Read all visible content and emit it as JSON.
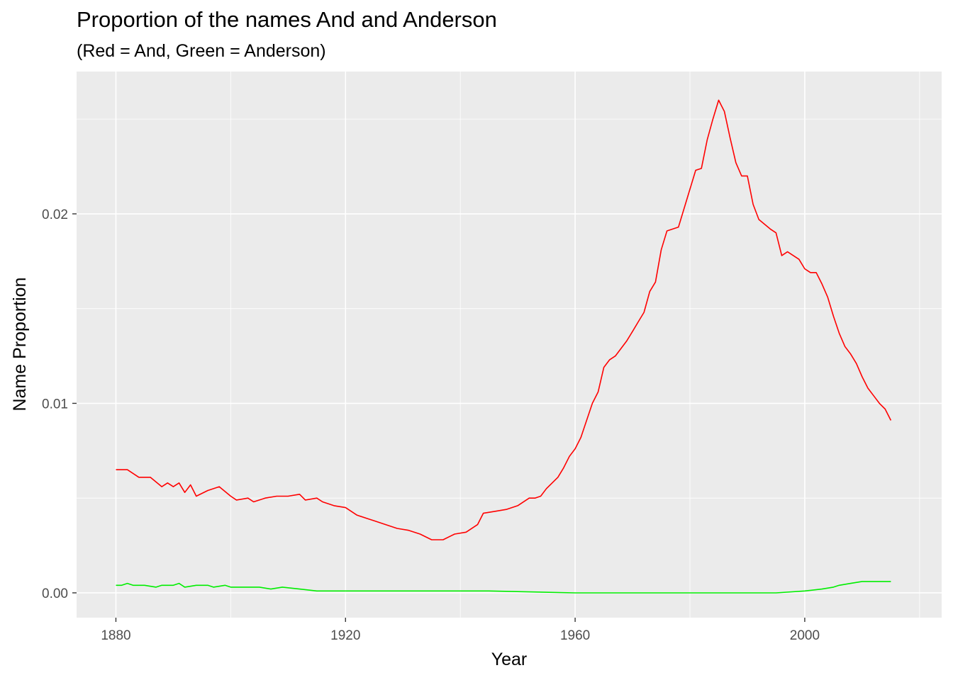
{
  "chart_data": {
    "type": "line",
    "title": "Proportion of the names And and Anderson",
    "subtitle": "(Red = And, Green = Anderson)",
    "xlabel": "Year",
    "ylabel": "Name Proportion",
    "xlim": [
      1873.15,
      2023.85
    ],
    "ylim": [
      -0.00131,
      0.02751
    ],
    "x_ticks": [
      1880,
      1920,
      1960,
      2000
    ],
    "x_tick_labels": [
      "1880",
      "1920",
      "1960",
      "2000"
    ],
    "y_ticks": [
      0.0,
      0.01,
      0.02
    ],
    "y_tick_labels": [
      "0.00",
      "0.01",
      "0.02"
    ],
    "grid": true,
    "panel_background": "#ebebeb",
    "grid_color": "#ffffff",
    "series": [
      {
        "color": "#ff0000",
        "points": [
          [
            1880,
            0.0065
          ],
          [
            1882,
            0.0065
          ],
          [
            1883,
            0.0063
          ],
          [
            1884,
            0.0061
          ],
          [
            1886,
            0.0061
          ],
          [
            1888,
            0.0056
          ],
          [
            1889,
            0.0058
          ],
          [
            1890,
            0.0056
          ],
          [
            1891,
            0.0058
          ],
          [
            1892,
            0.0053
          ],
          [
            1893,
            0.0057
          ],
          [
            1894,
            0.0051
          ],
          [
            1896,
            0.0054
          ],
          [
            1898,
            0.0056
          ],
          [
            1900,
            0.0051
          ],
          [
            1901,
            0.0049
          ],
          [
            1903,
            0.005
          ],
          [
            1904,
            0.0048
          ],
          [
            1906,
            0.005
          ],
          [
            1908,
            0.0051
          ],
          [
            1910,
            0.0051
          ],
          [
            1912,
            0.0052
          ],
          [
            1913,
            0.0049
          ],
          [
            1915,
            0.005
          ],
          [
            1916,
            0.0048
          ],
          [
            1918,
            0.0046
          ],
          [
            1920,
            0.0045
          ],
          [
            1922,
            0.0041
          ],
          [
            1924,
            0.0039
          ],
          [
            1925,
            0.0038
          ],
          [
            1927,
            0.0036
          ],
          [
            1929,
            0.0034
          ],
          [
            1931,
            0.0033
          ],
          [
            1933,
            0.0031
          ],
          [
            1935,
            0.0028
          ],
          [
            1937,
            0.0028
          ],
          [
            1939,
            0.0031
          ],
          [
            1941,
            0.0032
          ],
          [
            1943,
            0.0036
          ],
          [
            1944,
            0.0042
          ],
          [
            1946,
            0.0043
          ],
          [
            1948,
            0.0044
          ],
          [
            1950,
            0.0046
          ],
          [
            1952,
            0.005
          ],
          [
            1953,
            0.005
          ],
          [
            1954,
            0.0051
          ],
          [
            1955,
            0.0055
          ],
          [
            1956,
            0.0058
          ],
          [
            1957,
            0.0061
          ],
          [
            1958,
            0.0066
          ],
          [
            1959,
            0.0072
          ],
          [
            1960,
            0.0076
          ],
          [
            1961,
            0.0082
          ],
          [
            1962,
            0.0091
          ],
          [
            1963,
            0.01
          ],
          [
            1964,
            0.0106
          ],
          [
            1965,
            0.0119
          ],
          [
            1966,
            0.0123
          ],
          [
            1967,
            0.0125
          ],
          [
            1968,
            0.0129
          ],
          [
            1969,
            0.0133
          ],
          [
            1970,
            0.0138
          ],
          [
            1971,
            0.0143
          ],
          [
            1972,
            0.0148
          ],
          [
            1973,
            0.0159
          ],
          [
            1974,
            0.0164
          ],
          [
            1975,
            0.0181
          ],
          [
            1976,
            0.0191
          ],
          [
            1978,
            0.0193
          ],
          [
            1979,
            0.0203
          ],
          [
            1980,
            0.0213
          ],
          [
            1981,
            0.0223
          ],
          [
            1982,
            0.0224
          ],
          [
            1983,
            0.0239
          ],
          [
            1984,
            0.025
          ],
          [
            1985,
            0.026
          ],
          [
            1986,
            0.0254
          ],
          [
            1987,
            0.024
          ],
          [
            1988,
            0.0227
          ],
          [
            1989,
            0.022
          ],
          [
            1990,
            0.022
          ],
          [
            1991,
            0.0205
          ],
          [
            1992,
            0.0197
          ],
          [
            1994,
            0.0192
          ],
          [
            1995,
            0.019
          ],
          [
            1996,
            0.0178
          ],
          [
            1997,
            0.018
          ],
          [
            1999,
            0.0176
          ],
          [
            2000,
            0.0171
          ],
          [
            2001,
            0.0169
          ],
          [
            2002,
            0.0169
          ],
          [
            2003,
            0.0163
          ],
          [
            2004,
            0.0156
          ],
          [
            2005,
            0.0146
          ],
          [
            2006,
            0.0137
          ],
          [
            2007,
            0.013
          ],
          [
            2008,
            0.0126
          ],
          [
            2009,
            0.0121
          ],
          [
            2010,
            0.0114
          ],
          [
            2011,
            0.0108
          ],
          [
            2012,
            0.0104
          ],
          [
            2013,
            0.01
          ],
          [
            2014,
            0.0097
          ],
          [
            2015,
            0.0091
          ]
        ]
      },
      {
        "color": "#00ee00",
        "points": [
          [
            1880,
            0.0004
          ],
          [
            1881,
            0.0004
          ],
          [
            1882,
            0.0005
          ],
          [
            1883,
            0.0004
          ],
          [
            1885,
            0.0004
          ],
          [
            1887,
            0.0003
          ],
          [
            1888,
            0.0004
          ],
          [
            1890,
            0.0004
          ],
          [
            1891,
            0.0005
          ],
          [
            1892,
            0.0003
          ],
          [
            1894,
            0.0004
          ],
          [
            1896,
            0.0004
          ],
          [
            1897,
            0.0003
          ],
          [
            1899,
            0.0004
          ],
          [
            1900,
            0.0003
          ],
          [
            1901,
            0.0003
          ],
          [
            1902,
            0.0003
          ],
          [
            1903,
            0.0003
          ],
          [
            1905,
            0.0003
          ],
          [
            1907,
            0.0002
          ],
          [
            1909,
            0.0003
          ],
          [
            1912,
            0.0002
          ],
          [
            1915,
            0.0001
          ],
          [
            1920,
            0.0001
          ],
          [
            1930,
            0.0001
          ],
          [
            1945,
            0.0001
          ],
          [
            1960,
            0.0
          ],
          [
            1980,
            0.0
          ],
          [
            1990,
            0.0
          ],
          [
            1995,
            0.0
          ],
          [
            2000,
            0.0001
          ],
          [
            2003,
            0.0002
          ],
          [
            2005,
            0.0003
          ],
          [
            2006,
            0.0004
          ],
          [
            2008,
            0.0005
          ],
          [
            2010,
            0.0006
          ],
          [
            2012,
            0.0006
          ],
          [
            2015,
            0.0006
          ]
        ]
      }
    ]
  }
}
